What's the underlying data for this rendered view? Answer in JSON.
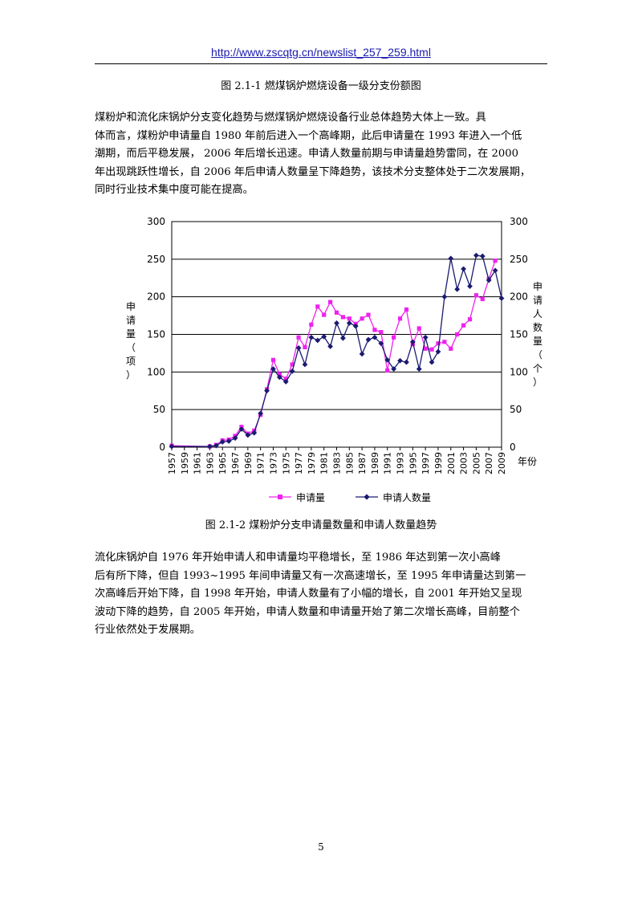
{
  "header": {
    "url": "http://www.zscqtg.cn/newslist_257_259.html"
  },
  "figure1": {
    "caption": "图 2.1-1  燃煤锅炉燃烧设备一级分支份额图"
  },
  "paragraph1": {
    "lines": [
      "煤粉炉和流化床锅炉分支变化趋势与燃煤锅炉燃烧设备行业总体趋势大体上一致。具",
      "体而言，煤粉炉申请量自 1980 年前后进入一个高峰期，此后申请量在 1993 年进入一个低",
      "潮期，而后平稳发展，  2006 年后增长迅速。申请人数量前期与申请量趋势雷同，在 2000",
      "年出现跳跃性增长，自 2006 年后申请人数量呈下降趋势，该技术分支整体处于二次发展期，",
      "同时行业技术集中度可能在提高。"
    ]
  },
  "chart_data": {
    "type": "line",
    "title": "",
    "xlabel": "年份",
    "ylabel_left": "申请量（项）",
    "ylabel_right": "申请人数量（个）",
    "ylim": [
      0,
      300
    ],
    "y2lim": [
      0,
      300
    ],
    "yticks": [
      0,
      50,
      100,
      150,
      200,
      250,
      300
    ],
    "y2ticks": [
      0,
      50,
      100,
      150,
      200,
      250,
      300
    ],
    "grid": true,
    "legend_position": "bottom",
    "x_tick_labels": [
      "1957",
      "1959",
      "1961",
      "1963",
      "1965",
      "1967",
      "1969",
      "1971",
      "1973",
      "1975",
      "1977",
      "1979",
      "1981",
      "1983",
      "1985",
      "1987",
      "1989",
      "1991",
      "1993",
      "1995",
      "1997",
      "1999",
      "2001",
      "2003",
      "2005",
      "2007",
      "2009"
    ],
    "x": [
      1957,
      1963,
      1964,
      1965,
      1966,
      1967,
      1968,
      1969,
      1970,
      1971,
      1972,
      1973,
      1974,
      1975,
      1976,
      1977,
      1978,
      1979,
      1980,
      1981,
      1982,
      1983,
      1984,
      1985,
      1986,
      1987,
      1988,
      1989,
      1990,
      1991,
      1992,
      1993,
      1994,
      1995,
      1996,
      1997,
      1998,
      1999,
      2000,
      2001,
      2002,
      2003,
      2004,
      2005,
      2006,
      2007,
      2008,
      2009
    ],
    "series": [
      {
        "name": "申请量",
        "color": "#ee22ee",
        "marker": "square",
        "axis": "left",
        "values": [
          2,
          1,
          3,
          9,
          10,
          15,
          27,
          18,
          22,
          43,
          77,
          116,
          97,
          91,
          110,
          146,
          133,
          163,
          187,
          176,
          193,
          179,
          173,
          171,
          164,
          171,
          176,
          156,
          153,
          102,
          146,
          171,
          183,
          137,
          158,
          131,
          130,
          138,
          140,
          131,
          150,
          162,
          170,
          202,
          197,
          224,
          248,
          null
        ]
      },
      {
        "name": "申请人数量",
        "color": "#1a1a70",
        "marker": "diamond",
        "axis": "right",
        "values": [
          1,
          1,
          2,
          7,
          8,
          12,
          24,
          16,
          19,
          45,
          75,
          104,
          93,
          87,
          101,
          132,
          110,
          146,
          142,
          147,
          134,
          165,
          145,
          165,
          161,
          124,
          143,
          146,
          138,
          116,
          104,
          115,
          113,
          140,
          104,
          146,
          113,
          127,
          200,
          251,
          210,
          237,
          214,
          255,
          254,
          222,
          235,
          198
        ]
      }
    ]
  },
  "figure2": {
    "caption": "图 2.1-2  煤粉炉分支申请量数量和申请人数量趋势"
  },
  "paragraph2": {
    "lines": [
      "流化床锅炉自 1976 年开始申请人和申请量均平稳增长，至 1986 年达到第一次小高峰",
      "后有所下降，但自 1993~1995 年间申请量又有一次高速增长，至 1995 年申请量达到第一",
      "次高峰后开始下降，自 1998 年开始，申请人数量有了小幅的增长，自 2001 年开始又呈现",
      "波动下降的趋势，自 2005 年开始，申请人数量和申请量开始了第二次增长高峰，目前整个",
      "行业依然处于发展期。"
    ]
  },
  "footer": {
    "page_number": "5"
  }
}
